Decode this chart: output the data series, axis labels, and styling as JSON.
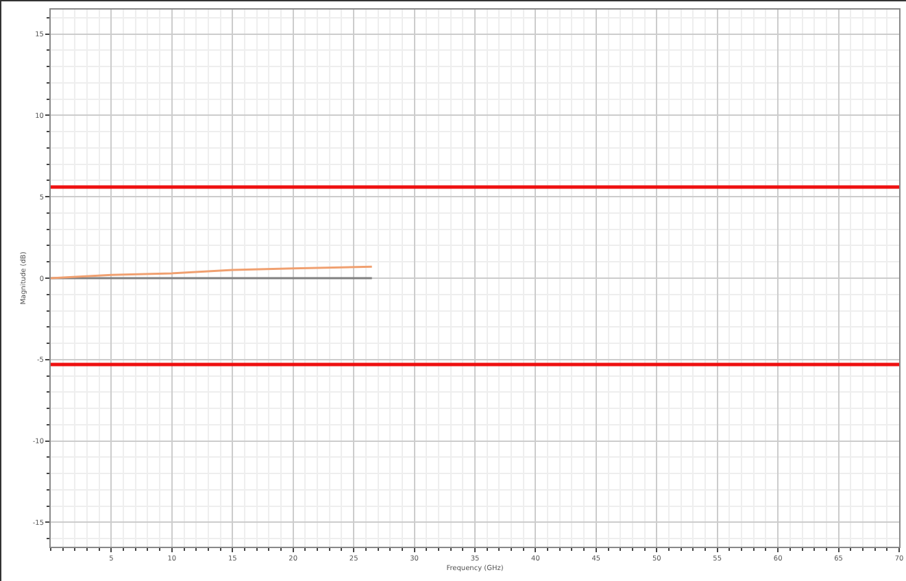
{
  "chart_data": {
    "type": "line",
    "xlabel": "Frequency (GHz)",
    "ylabel": "Magnitude (dB)",
    "xlim": [
      0,
      70
    ],
    "xticks": [
      5,
      10,
      15,
      20,
      25,
      30,
      35,
      40,
      45,
      50,
      55,
      60,
      65,
      70
    ],
    "ylim": [
      -16.5,
      16.5
    ],
    "yticks": [
      -15,
      -10,
      -5,
      0,
      5,
      10,
      15
    ],
    "grid": true,
    "marker": "none",
    "line_style": "solid",
    "series": [
      {
        "color": "#808080",
        "x": [
          0,
          5,
          10,
          15,
          20,
          26.5
        ],
        "values": [
          0,
          0,
          0,
          0,
          0,
          0
        ]
      },
      {
        "color": "#f0a070",
        "x": [
          0,
          5,
          10,
          15,
          20,
          26.5
        ],
        "values": [
          0,
          0.2,
          0.3,
          0.5,
          0.6,
          0.7
        ]
      }
    ],
    "ref_lines": [
      {
        "axis": "y",
        "value": 5.6,
        "color": "#ee1111",
        "line_style": "solid"
      },
      {
        "axis": "y",
        "value": -5.3,
        "color": "#ee1111",
        "line_style": "solid"
      }
    ]
  }
}
